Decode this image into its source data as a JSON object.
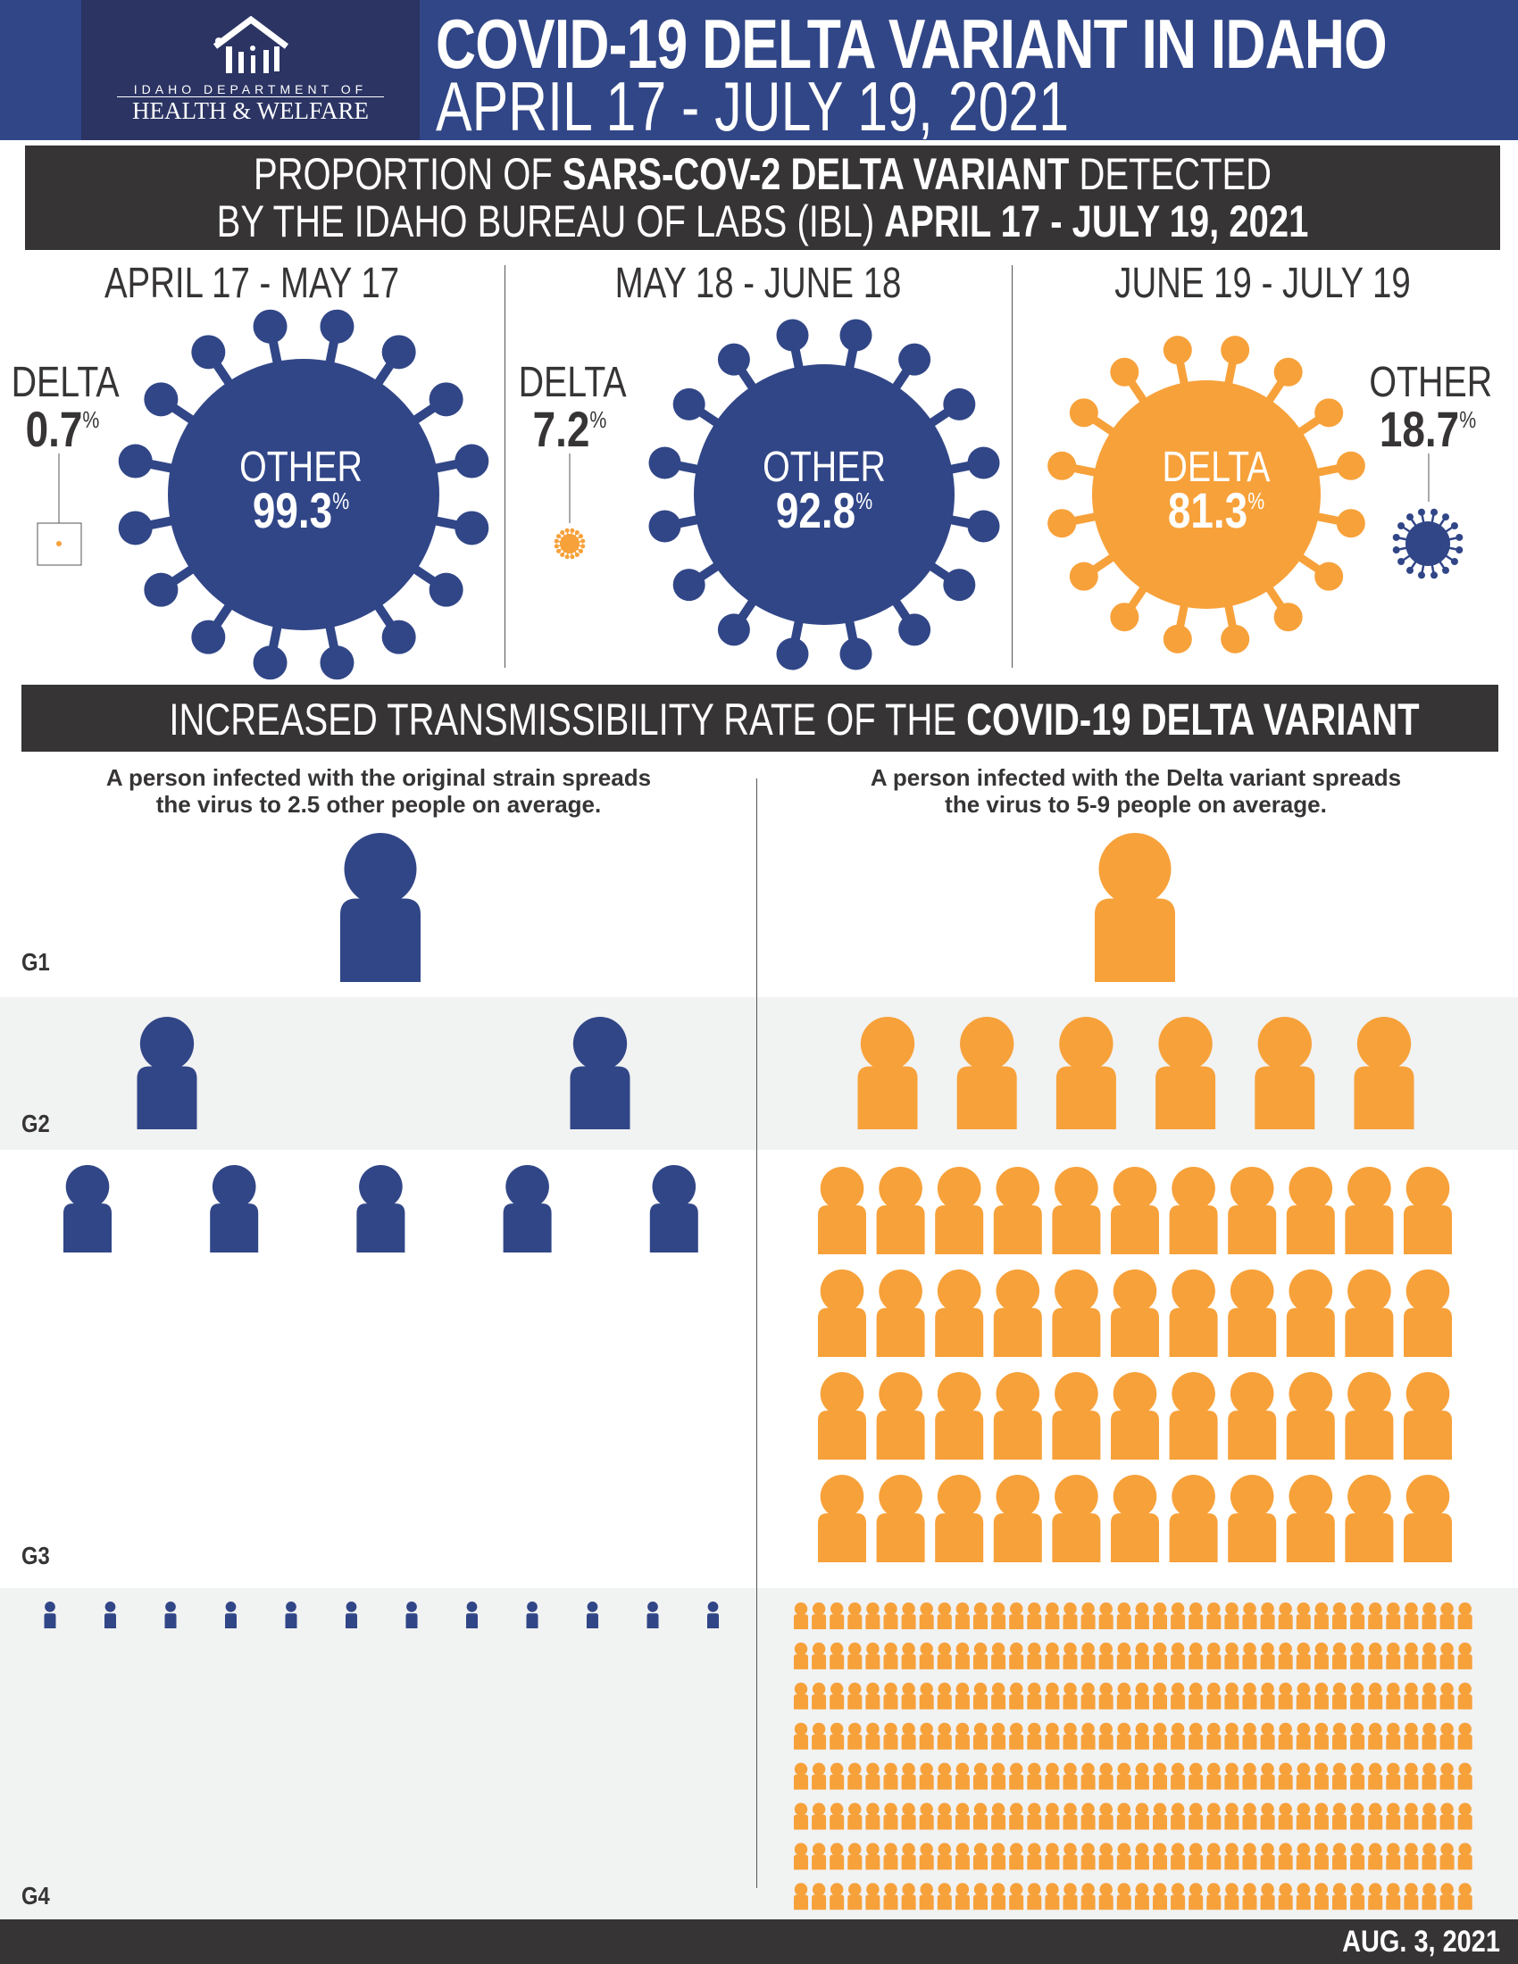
{
  "header": {
    "org_line1": "IDAHO DEPARTMENT OF",
    "org_line2": "HEALTH & WELFARE",
    "title": "COVID-19 DELTA VARIANT  IN IDAHO",
    "subtitle": "APRIL 17 - JULY 19, 2021"
  },
  "banner1": {
    "l1a": "PROPORTION OF ",
    "l1b": "SARS-COV-2 DELTA VARIANT",
    "l1c": " DETECTED",
    "l2a": "BY THE IDAHO BUREAU OF LABS (IBL) ",
    "l2b": "APRIL 17 - JULY 19, 2021"
  },
  "periods": [
    {
      "title": "APRIL 17 - MAY 17",
      "outside_label": "DELTA",
      "outside_value": "0.7",
      "inside_label": "OTHER",
      "inside_value": "99.3",
      "pct": "%"
    },
    {
      "title": "MAY 18 - JUNE 18",
      "outside_label": "DELTA",
      "outside_value": "7.2",
      "inside_label": "OTHER",
      "inside_value": "92.8",
      "pct": "%"
    },
    {
      "title": "JUNE 19 - JULY 19",
      "outside_label": "OTHER",
      "outside_value": "18.7",
      "inside_label": "DELTA",
      "inside_value": "81.3",
      "pct": "%"
    }
  ],
  "banner2": {
    "a": "INCREASED TRANSMISSIBILITY RATE OF THE ",
    "b": "COVID-19 DELTA VARIANT"
  },
  "notes": {
    "original_l1": "A person infected with the original strain spreads",
    "original_l2": "the virus to 2.5 other people on average.",
    "delta_l1": "A person infected with the Delta variant spreads",
    "delta_l2": "the virus to 5-9 people on average."
  },
  "generations": [
    {
      "label": "G1",
      "original_count": 1,
      "delta_count": 1
    },
    {
      "label": "G2",
      "original_count": 2,
      "delta_count": 6
    },
    {
      "label": "G3",
      "original_count": 5,
      "delta_count": 44
    },
    {
      "label": "G4",
      "original_count": 12,
      "delta_count": 304
    }
  ],
  "colors": {
    "navy": "#314687",
    "orange": "#f7a13a",
    "dark": "#363435"
  },
  "footer": {
    "date": "AUG. 3, 2021"
  }
}
